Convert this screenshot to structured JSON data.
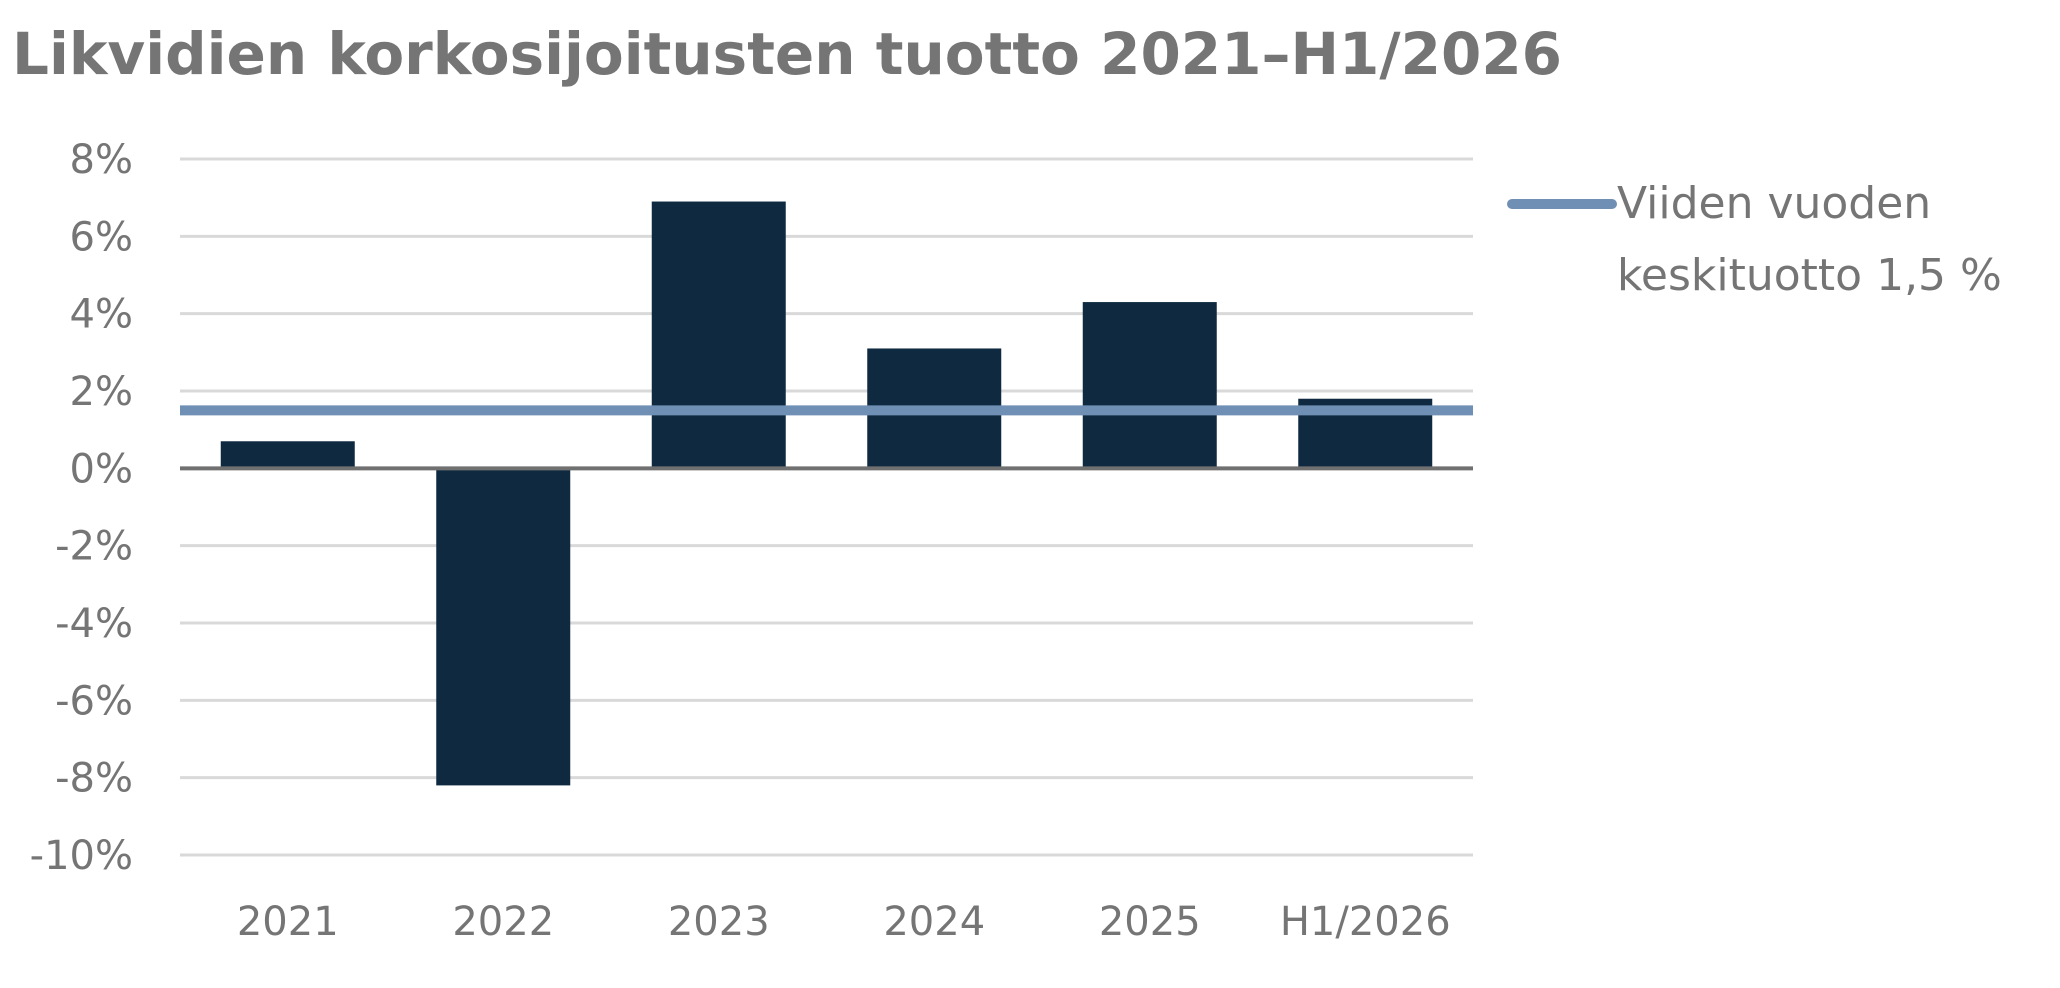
{
  "chart_data": {
    "type": "bar",
    "title": "Likvidien korkosijoitusten tuotto 2021–H1/2026",
    "categories": [
      "2021",
      "2022",
      "2023",
      "2024",
      "2025",
      "H1/2026"
    ],
    "series": [
      {
        "values": [
          0.7,
          -8.2,
          6.9,
          3.1,
          4.3,
          1.8
        ],
        "color": "#0f2a40"
      }
    ],
    "reference_line": {
      "label_lines": [
        "Viiden vuoden",
        "keskituotto 1,5 %"
      ],
      "value": 1.5,
      "color": "#6f8fb4"
    },
    "ylim": [
      -10,
      8
    ],
    "yticks": [
      8,
      6,
      4,
      2,
      0,
      -2,
      -4,
      -6,
      -8,
      -10
    ],
    "ytick_labels": [
      "8%",
      "6%",
      "4%",
      "2%",
      "0%",
      "-2%",
      "-4%",
      "-6%",
      "-8%",
      "-10%"
    ],
    "grid": true,
    "legend_position": "right",
    "colors": {
      "gridline": "#d9d9d9",
      "zero_axis": "#707070",
      "text": "#757575"
    }
  }
}
